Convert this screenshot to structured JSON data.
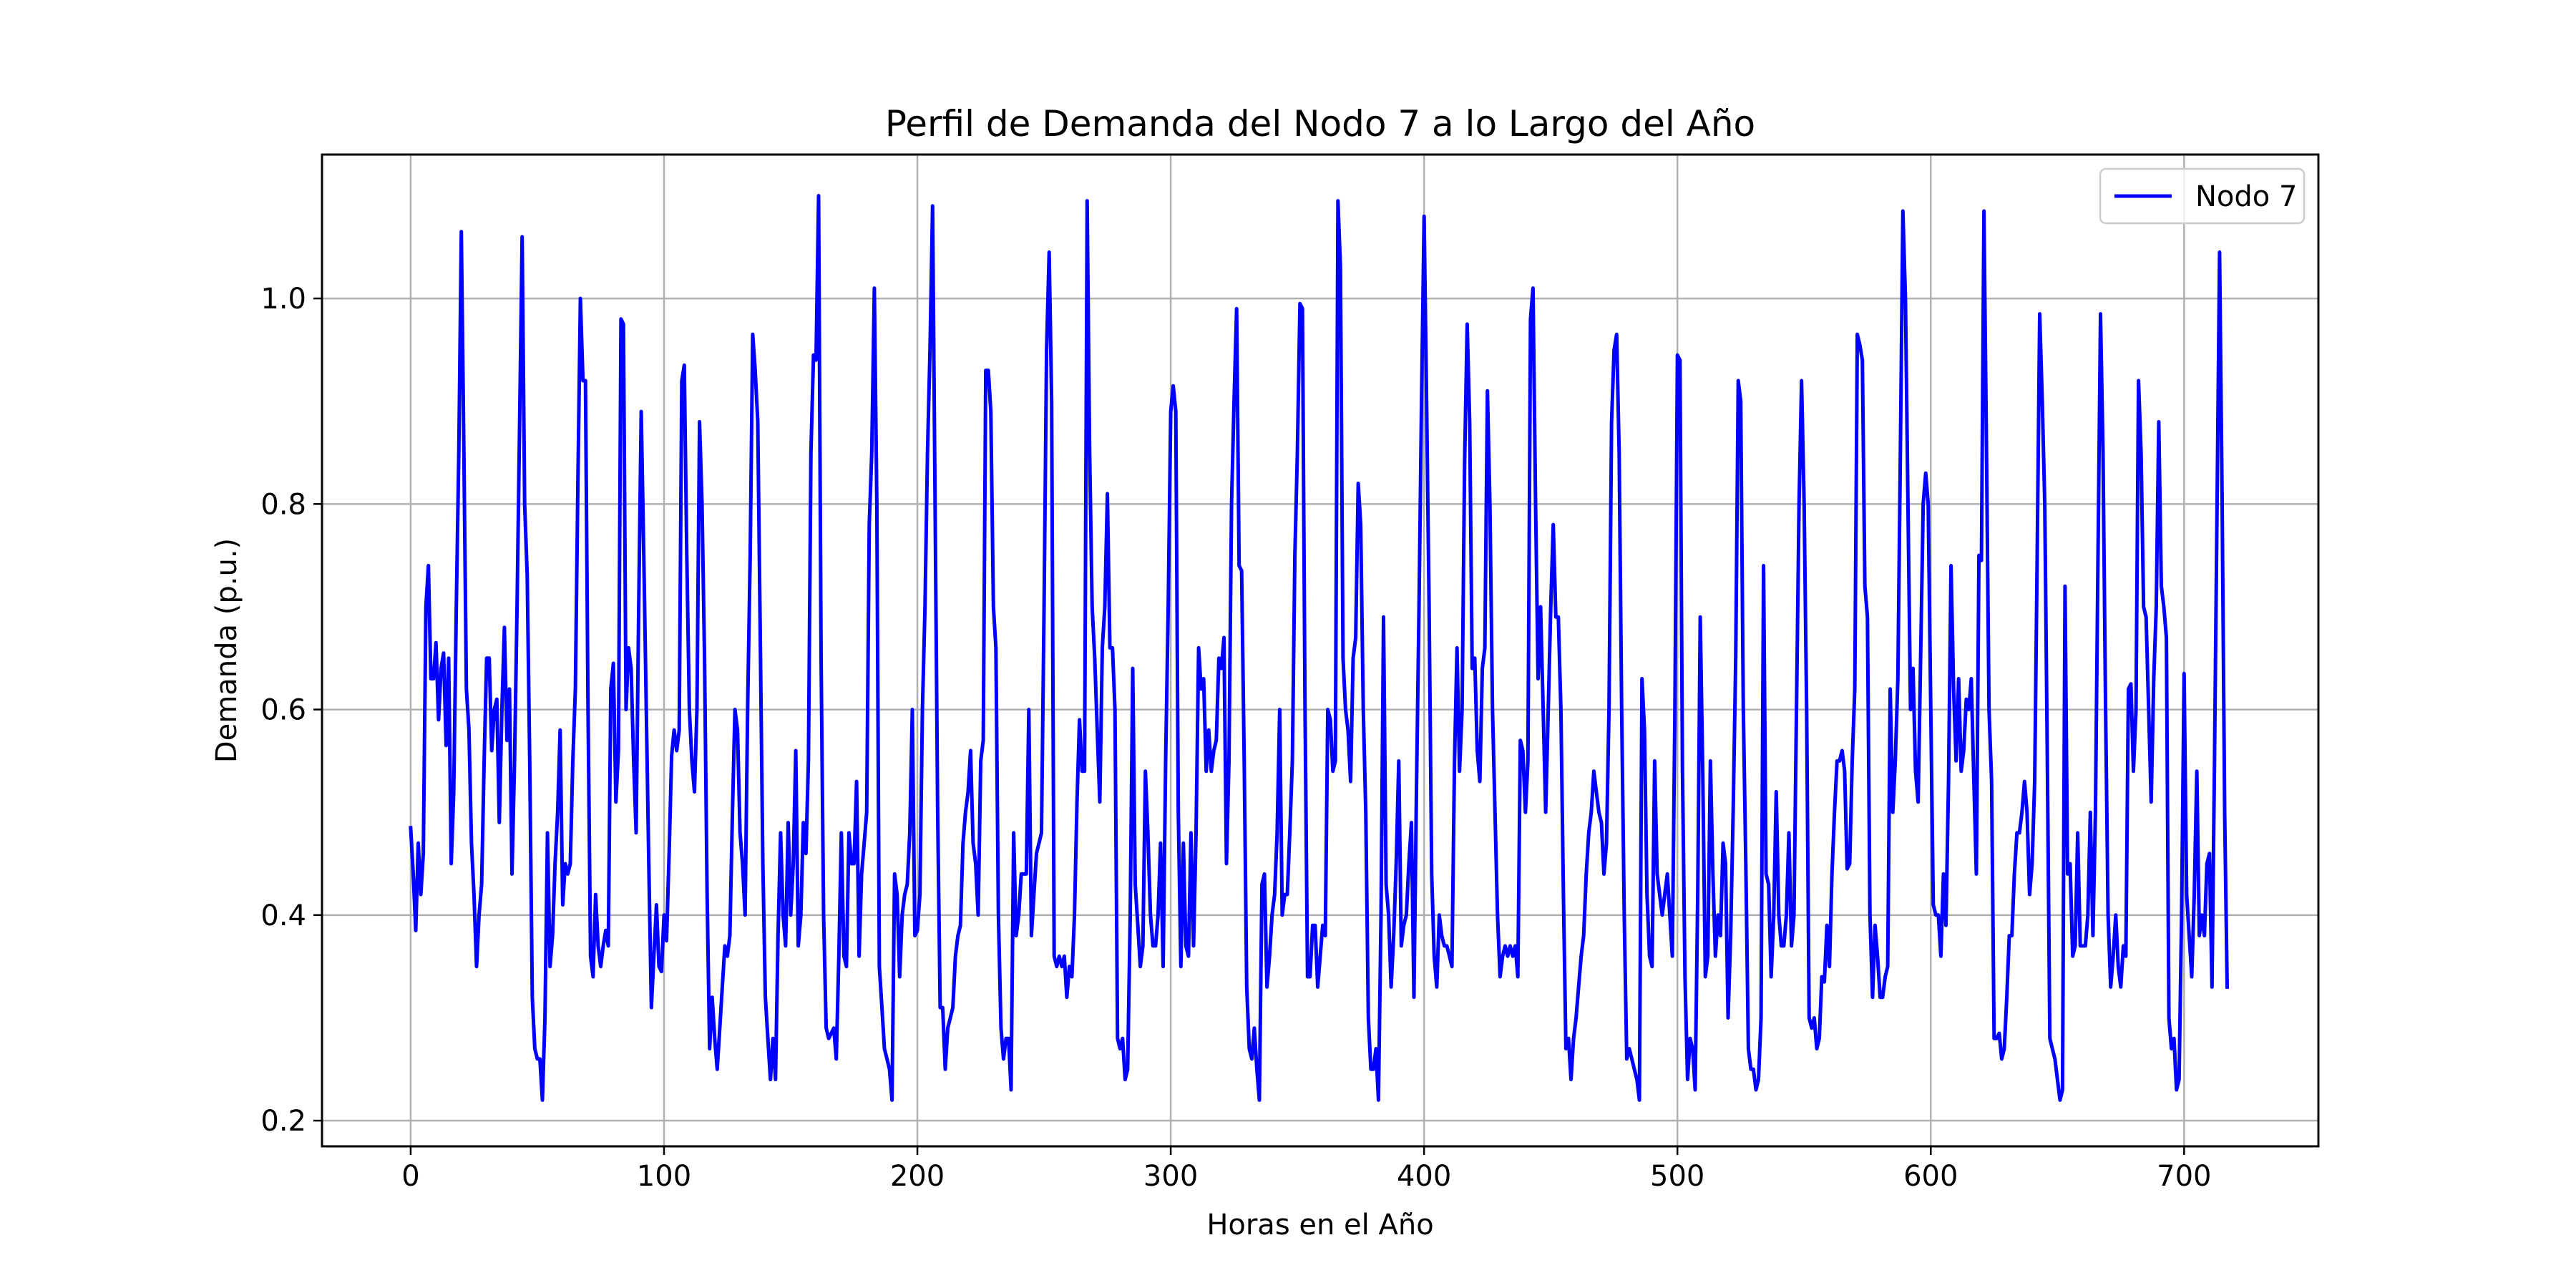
{
  "chart_data": {
    "type": "line",
    "title": "Perfil de Demanda del Nodo 7 a lo Largo del Año",
    "xlabel": "Horas en el Año",
    "ylabel": "Demanda (p.u.)",
    "xlim": [
      -35,
      753
    ],
    "ylim": [
      0.175,
      1.14
    ],
    "xticks": [
      0,
      100,
      200,
      300,
      400,
      500,
      600,
      700
    ],
    "yticks": [
      0.2,
      0.4,
      0.6,
      0.8,
      1.0
    ],
    "xtick_labels": [
      "0",
      "100",
      "200",
      "300",
      "400",
      "500",
      "600",
      "700"
    ],
    "ytick_labels": [
      "0.2",
      "0.4",
      "0.6",
      "0.8",
      "1.0"
    ],
    "grid": true,
    "legend_position": "top-right",
    "series": [
      {
        "name": "Nodo 7",
        "color": "#0000ff",
        "x_start": 0,
        "x_step": 1,
        "values": [
          0.485,
          0.44,
          0.385,
          0.47,
          0.42,
          0.46,
          0.7,
          0.74,
          0.63,
          0.63,
          0.665,
          0.59,
          0.64,
          0.655,
          0.565,
          0.65,
          0.45,
          0.52,
          0.7,
          0.85,
          1.065,
          0.85,
          0.62,
          0.58,
          0.47,
          0.42,
          0.35,
          0.4,
          0.43,
          0.55,
          0.65,
          0.65,
          0.56,
          0.6,
          0.61,
          0.49,
          0.6,
          0.68,
          0.57,
          0.62,
          0.44,
          0.55,
          0.7,
          0.88,
          1.06,
          0.8,
          0.73,
          0.55,
          0.32,
          0.27,
          0.26,
          0.26,
          0.22,
          0.3,
          0.48,
          0.35,
          0.38,
          0.45,
          0.5,
          0.58,
          0.41,
          0.45,
          0.44,
          0.45,
          0.55,
          0.62,
          0.82,
          1.0,
          0.92,
          0.92,
          0.6,
          0.36,
          0.34,
          0.42,
          0.37,
          0.35,
          0.37,
          0.385,
          0.37,
          0.62,
          0.645,
          0.51,
          0.56,
          0.98,
          0.975,
          0.6,
          0.66,
          0.64,
          0.55,
          0.48,
          0.7,
          0.89,
          0.75,
          0.6,
          0.45,
          0.31,
          0.36,
          0.41,
          0.35,
          0.345,
          0.4,
          0.375,
          0.46,
          0.555,
          0.58,
          0.56,
          0.58,
          0.92,
          0.935,
          0.75,
          0.6,
          0.55,
          0.52,
          0.6,
          0.88,
          0.8,
          0.65,
          0.42,
          0.27,
          0.32,
          0.28,
          0.25,
          0.29,
          0.33,
          0.37,
          0.36,
          0.38,
          0.5,
          0.6,
          0.58,
          0.48,
          0.45,
          0.4,
          0.6,
          0.75,
          0.965,
          0.93,
          0.88,
          0.67,
          0.45,
          0.32,
          0.28,
          0.24,
          0.28,
          0.24,
          0.38,
          0.48,
          0.4,
          0.37,
          0.49,
          0.4,
          0.45,
          0.56,
          0.37,
          0.4,
          0.49,
          0.46,
          0.55,
          0.85,
          0.945,
          0.94,
          1.1,
          0.65,
          0.4,
          0.29,
          0.28,
          0.285,
          0.29,
          0.26,
          0.36,
          0.48,
          0.36,
          0.35,
          0.48,
          0.45,
          0.45,
          0.53,
          0.36,
          0.44,
          0.47,
          0.5,
          0.78,
          0.85,
          1.01,
          0.8,
          0.35,
          0.31,
          0.27,
          0.26,
          0.25,
          0.22,
          0.44,
          0.42,
          0.34,
          0.4,
          0.42,
          0.43,
          0.48,
          0.6,
          0.38,
          0.385,
          0.42,
          0.6,
          0.7,
          0.85,
          0.95,
          1.09,
          0.8,
          0.5,
          0.31,
          0.31,
          0.25,
          0.29,
          0.3,
          0.31,
          0.36,
          0.38,
          0.39,
          0.47,
          0.5,
          0.52,
          0.56,
          0.47,
          0.45,
          0.4,
          0.55,
          0.57,
          0.93,
          0.93,
          0.89,
          0.7,
          0.66,
          0.4,
          0.29,
          0.26,
          0.28,
          0.28,
          0.23,
          0.48,
          0.38,
          0.4,
          0.44,
          0.44,
          0.44,
          0.6,
          0.38,
          0.42,
          0.46,
          0.47,
          0.48,
          0.7,
          0.95,
          1.045,
          0.9,
          0.36,
          0.35,
          0.36,
          0.35,
          0.36,
          0.32,
          0.35,
          0.34,
          0.4,
          0.51,
          0.59,
          0.54,
          0.54,
          1.095,
          0.85,
          0.7,
          0.65,
          0.58,
          0.51,
          0.66,
          0.7,
          0.81,
          0.66,
          0.66,
          0.6,
          0.28,
          0.27,
          0.28,
          0.24,
          0.25,
          0.4,
          0.64,
          0.43,
          0.39,
          0.35,
          0.37,
          0.54,
          0.48,
          0.4,
          0.37,
          0.37,
          0.4,
          0.47,
          0.35,
          0.55,
          0.7,
          0.89,
          0.915,
          0.89,
          0.5,
          0.35,
          0.47,
          0.37,
          0.36,
          0.48,
          0.37,
          0.48,
          0.66,
          0.62,
          0.63,
          0.54,
          0.58,
          0.54,
          0.56,
          0.57,
          0.65,
          0.64,
          0.67,
          0.45,
          0.55,
          0.8,
          0.9,
          0.99,
          0.74,
          0.735,
          0.55,
          0.33,
          0.27,
          0.26,
          0.29,
          0.25,
          0.22,
          0.43,
          0.44,
          0.33,
          0.36,
          0.4,
          0.42,
          0.48,
          0.6,
          0.4,
          0.42,
          0.42,
          0.48,
          0.55,
          0.75,
          0.85,
          0.995,
          0.99,
          0.6,
          0.34,
          0.34,
          0.39,
          0.39,
          0.33,
          0.36,
          0.39,
          0.38,
          0.6,
          0.59,
          0.54,
          0.55,
          1.095,
          1.03,
          0.65,
          0.6,
          0.58,
          0.53,
          0.65,
          0.67,
          0.82,
          0.78,
          0.6,
          0.5,
          0.3,
          0.25,
          0.25,
          0.27,
          0.22,
          0.4,
          0.69,
          0.43,
          0.4,
          0.33,
          0.38,
          0.45,
          0.55,
          0.37,
          0.39,
          0.4,
          0.45,
          0.49,
          0.32,
          0.52,
          0.7,
          0.9,
          1.08,
          0.9,
          0.7,
          0.44,
          0.36,
          0.33,
          0.4,
          0.38,
          0.37,
          0.37,
          0.36,
          0.35,
          0.55,
          0.66,
          0.54,
          0.6,
          0.84,
          0.975,
          0.88,
          0.64,
          0.65,
          0.56,
          0.53,
          0.64,
          0.66,
          0.91,
          0.8,
          0.6,
          0.5,
          0.4,
          0.34,
          0.36,
          0.37,
          0.36,
          0.37,
          0.36,
          0.37,
          0.34,
          0.57,
          0.56,
          0.5,
          0.55,
          0.98,
          1.01,
          0.8,
          0.63,
          0.7,
          0.6,
          0.5,
          0.6,
          0.7,
          0.78,
          0.69,
          0.69,
          0.6,
          0.42,
          0.27,
          0.28,
          0.24,
          0.28,
          0.3,
          0.33,
          0.36,
          0.38,
          0.44,
          0.48,
          0.5,
          0.54,
          0.52,
          0.5,
          0.49,
          0.44,
          0.47,
          0.6,
          0.88,
          0.95,
          0.965,
          0.85,
          0.6,
          0.4,
          0.26,
          0.27,
          0.26,
          0.25,
          0.24,
          0.22,
          0.63,
          0.58,
          0.42,
          0.36,
          0.35,
          0.55,
          0.44,
          0.42,
          0.4,
          0.42,
          0.44,
          0.4,
          0.36,
          0.6,
          0.945,
          0.94,
          0.54,
          0.34,
          0.24,
          0.28,
          0.27,
          0.23,
          0.42,
          0.69,
          0.54,
          0.34,
          0.36,
          0.55,
          0.44,
          0.36,
          0.4,
          0.38,
          0.47,
          0.45,
          0.3,
          0.38,
          0.5,
          0.65,
          0.92,
          0.9,
          0.6,
          0.45,
          0.27,
          0.25,
          0.25,
          0.23,
          0.24,
          0.3,
          0.74,
          0.44,
          0.43,
          0.34,
          0.4,
          0.52,
          0.4,
          0.37,
          0.37,
          0.4,
          0.48,
          0.37,
          0.4,
          0.6,
          0.8,
          0.92,
          0.8,
          0.6,
          0.3,
          0.29,
          0.3,
          0.27,
          0.28,
          0.34,
          0.335,
          0.39,
          0.35,
          0.44,
          0.5,
          0.55,
          0.55,
          0.56,
          0.54,
          0.445,
          0.45,
          0.55,
          0.62,
          0.965,
          0.955,
          0.94,
          0.72,
          0.69,
          0.4,
          0.32,
          0.39,
          0.36,
          0.32,
          0.32,
          0.34,
          0.35,
          0.62,
          0.5,
          0.55,
          0.63,
          0.85,
          1.085,
          1.0,
          0.8,
          0.6,
          0.64,
          0.54,
          0.51,
          0.65,
          0.8,
          0.83,
          0.8,
          0.6,
          0.41,
          0.4,
          0.4,
          0.36,
          0.44,
          0.39,
          0.53,
          0.74,
          0.62,
          0.55,
          0.63,
          0.54,
          0.56,
          0.61,
          0.6,
          0.63,
          0.53,
          0.44,
          0.75,
          0.745,
          1.085,
          0.85,
          0.6,
          0.53,
          0.28,
          0.28,
          0.285,
          0.26,
          0.27,
          0.32,
          0.38,
          0.38,
          0.44,
          0.48,
          0.48,
          0.5,
          0.53,
          0.5,
          0.42,
          0.45,
          0.53,
          0.75,
          0.985,
          0.9,
          0.8,
          0.55,
          0.28,
          0.27,
          0.26,
          0.24,
          0.22,
          0.23,
          0.72,
          0.44,
          0.45,
          0.36,
          0.37,
          0.48,
          0.37,
          0.37,
          0.37,
          0.4,
          0.5,
          0.38,
          0.5,
          0.75,
          0.985,
          0.85,
          0.6,
          0.4,
          0.33,
          0.36,
          0.4,
          0.35,
          0.33,
          0.37,
          0.36,
          0.62,
          0.625,
          0.54,
          0.6,
          0.92,
          0.85,
          0.7,
          0.69,
          0.6,
          0.51,
          0.63,
          0.7,
          0.88,
          0.72,
          0.7,
          0.67,
          0.3,
          0.27,
          0.28,
          0.23,
          0.24,
          0.4,
          0.635,
          0.42,
          0.38,
          0.34,
          0.42,
          0.54,
          0.38,
          0.4,
          0.38,
          0.45,
          0.46,
          0.33,
          0.55,
          0.8,
          1.045,
          0.8,
          0.5,
          0.33
        ]
      }
    ]
  }
}
